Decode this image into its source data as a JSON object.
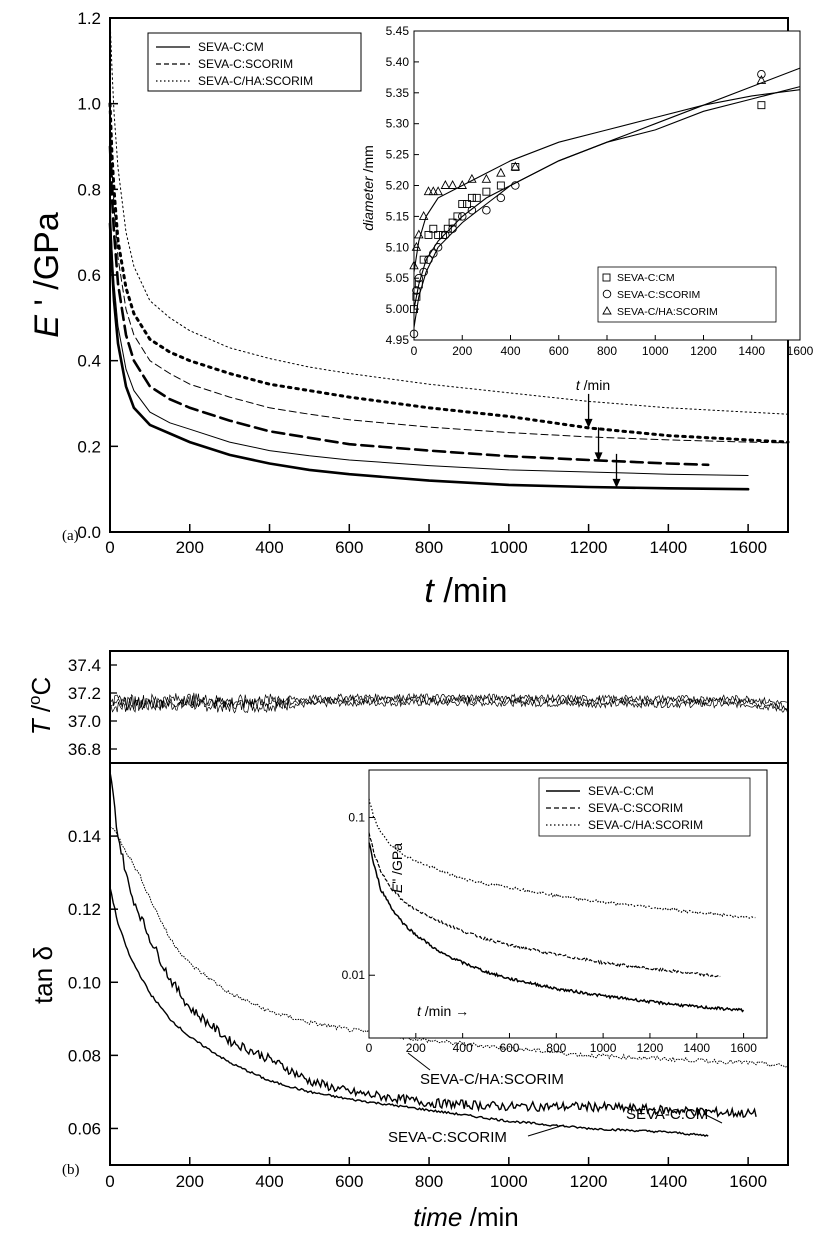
{
  "chart_data": [
    {
      "id": "panel_a",
      "type": "line",
      "panel_label": "(a)",
      "ylabel": "E ' /GPa",
      "xlabel": "t /min",
      "xlim": [
        0,
        1700
      ],
      "ylim": [
        0,
        1.2
      ],
      "xticks": [
        "0",
        "200",
        "400",
        "600",
        "800",
        "1000",
        "1200",
        "1400",
        "1600"
      ],
      "yticks": [
        "0.0",
        "0.2",
        "0.4",
        "0.6",
        "0.8",
        "1.0",
        "1.2"
      ],
      "legend": {
        "position": "top-left",
        "entries": [
          {
            "label": "SEVA-C:CM",
            "style": "solid"
          },
          {
            "label": "SEVA-C:SCORIM",
            "style": "dashed"
          },
          {
            "label": "SEVA-C/HA:SCORIM",
            "style": "dotted"
          }
        ]
      },
      "series": [
        {
          "name": "SEVA-C:CM",
          "style": "solid",
          "weight": "thick",
          "x": [
            0,
            5,
            10,
            20,
            40,
            60,
            100,
            150,
            200,
            300,
            400,
            500,
            600,
            800,
            1000,
            1200,
            1400,
            1600
          ],
          "y": [
            0.72,
            0.62,
            0.54,
            0.44,
            0.34,
            0.29,
            0.25,
            0.23,
            0.21,
            0.18,
            0.16,
            0.145,
            0.135,
            0.12,
            0.11,
            0.105,
            0.102,
            0.1
          ]
        },
        {
          "name": "SEVA-C:CM",
          "style": "solid",
          "weight": "thin",
          "x": [
            0,
            5,
            10,
            20,
            40,
            60,
            100,
            150,
            200,
            300,
            400,
            500,
            600,
            800,
            1000,
            1200,
            1400,
            1600
          ],
          "y": [
            0.78,
            0.66,
            0.58,
            0.48,
            0.38,
            0.33,
            0.28,
            0.255,
            0.24,
            0.21,
            0.19,
            0.178,
            0.168,
            0.155,
            0.145,
            0.14,
            0.135,
            0.132
          ]
        },
        {
          "name": "SEVA-C:SCORIM",
          "style": "dashed",
          "weight": "thick",
          "x": [
            0,
            5,
            10,
            20,
            40,
            60,
            100,
            150,
            200,
            300,
            400,
            500,
            600,
            800,
            1000,
            1200,
            1400,
            1500
          ],
          "y": [
            0.9,
            0.78,
            0.7,
            0.58,
            0.46,
            0.4,
            0.34,
            0.31,
            0.29,
            0.26,
            0.235,
            0.22,
            0.205,
            0.19,
            0.177,
            0.168,
            0.16,
            0.157
          ]
        },
        {
          "name": "SEVA-C:SCORIM",
          "style": "dashed",
          "weight": "thin",
          "x": [
            0,
            5,
            10,
            20,
            40,
            60,
            100,
            150,
            200,
            300,
            400,
            500,
            600,
            800,
            1000,
            1200,
            1400,
            1600,
            1700
          ],
          "y": [
            0.96,
            0.85,
            0.76,
            0.64,
            0.52,
            0.46,
            0.4,
            0.37,
            0.345,
            0.315,
            0.29,
            0.275,
            0.262,
            0.245,
            0.232,
            0.222,
            0.215,
            0.21,
            0.208
          ]
        },
        {
          "name": "SEVA-C/HA:SCORIM",
          "style": "dotted",
          "weight": "thick",
          "x": [
            0,
            5,
            10,
            20,
            40,
            60,
            100,
            150,
            200,
            300,
            400,
            500,
            600,
            800,
            1000,
            1200,
            1400,
            1600,
            1700
          ],
          "y": [
            1.0,
            0.88,
            0.8,
            0.68,
            0.57,
            0.51,
            0.45,
            0.42,
            0.4,
            0.37,
            0.345,
            0.33,
            0.315,
            0.29,
            0.27,
            0.243,
            0.225,
            0.215,
            0.21
          ]
        },
        {
          "name": "SEVA-C/HA:SCORIM",
          "style": "dotted",
          "weight": "thin",
          "x": [
            0,
            5,
            10,
            20,
            40,
            60,
            100,
            150,
            200,
            300,
            400,
            500,
            600,
            800,
            1000,
            1200,
            1400,
            1600,
            1700
          ],
          "y": [
            1.2,
            1.08,
            0.98,
            0.85,
            0.7,
            0.62,
            0.54,
            0.5,
            0.47,
            0.43,
            0.405,
            0.385,
            0.37,
            0.345,
            0.325,
            0.305,
            0.29,
            0.28,
            0.275
          ]
        }
      ],
      "annotations": [
        {
          "type": "arrow",
          "x": 1200,
          "y": 0.243
        },
        {
          "type": "arrow",
          "x": 1225,
          "y": 0.165
        },
        {
          "type": "arrow",
          "x": 1270,
          "y": 0.103
        }
      ]
    },
    {
      "id": "panel_a_inset",
      "type": "scatter",
      "ylabel": "diameter /mm",
      "xlabel": "t /min",
      "xlim": [
        0,
        1600
      ],
      "ylim": [
        4.95,
        5.45
      ],
      "xticks": [
        "0",
        "200",
        "400",
        "600",
        "800",
        "1000",
        "1200",
        "1400",
        "1600"
      ],
      "yticks": [
        "4.95",
        "5.00",
        "5.05",
        "5.10",
        "5.15",
        "5.20",
        "5.25",
        "5.30",
        "5.35",
        "5.40",
        "5.45"
      ],
      "legend": {
        "position": "bottom-right",
        "entries": [
          {
            "label": "SEVA-C:CM",
            "marker": "square"
          },
          {
            "label": "SEVA-C:SCORIM",
            "marker": "circle"
          },
          {
            "label": "SEVA-C/HA:SCORIM",
            "marker": "triangle"
          }
        ]
      },
      "series": [
        {
          "name": "SEVA-C:CM",
          "marker": "square",
          "x": [
            0,
            10,
            20,
            40,
            60,
            80,
            100,
            120,
            140,
            160,
            180,
            200,
            220,
            240,
            260,
            300,
            360,
            420,
            1440
          ],
          "y": [
            5.0,
            5.02,
            5.04,
            5.08,
            5.12,
            5.13,
            5.12,
            5.12,
            5.13,
            5.14,
            5.15,
            5.17,
            5.17,
            5.18,
            5.18,
            5.19,
            5.2,
            5.23,
            5.33
          ]
        },
        {
          "name": "SEVA-C:SCORIM",
          "marker": "circle",
          "x": [
            0,
            10,
            20,
            40,
            60,
            80,
            100,
            130,
            160,
            200,
            240,
            300,
            360,
            420,
            1440
          ],
          "y": [
            4.96,
            5.03,
            5.05,
            5.06,
            5.08,
            5.09,
            5.1,
            5.12,
            5.13,
            5.15,
            5.16,
            5.16,
            5.18,
            5.2,
            5.38
          ]
        },
        {
          "name": "SEVA-C/HA:SCORIM",
          "marker": "triangle",
          "x": [
            0,
            10,
            20,
            40,
            60,
            80,
            100,
            130,
            160,
            200,
            240,
            300,
            360,
            420,
            1440
          ],
          "y": [
            5.07,
            5.1,
            5.12,
            5.15,
            5.19,
            5.19,
            5.19,
            5.2,
            5.2,
            5.2,
            5.21,
            5.21,
            5.22,
            5.23,
            5.37
          ]
        }
      ],
      "fit_lines": [
        {
          "x": [
            0,
            20,
            50,
            100,
            200,
            300,
            400,
            600,
            800,
            1000,
            1200,
            1400,
            1600
          ],
          "y": [
            5.0,
            5.04,
            5.08,
            5.11,
            5.15,
            5.18,
            5.2,
            5.24,
            5.27,
            5.29,
            5.32,
            5.34,
            5.36
          ]
        },
        {
          "x": [
            0,
            20,
            50,
            100,
            200,
            300,
            400,
            600,
            800,
            1000,
            1200,
            1400,
            1600
          ],
          "y": [
            4.97,
            5.02,
            5.06,
            5.1,
            5.14,
            5.17,
            5.2,
            5.24,
            5.27,
            5.3,
            5.33,
            5.36,
            5.39
          ]
        },
        {
          "x": [
            0,
            20,
            50,
            100,
            200,
            300,
            400,
            600,
            800,
            1000,
            1200,
            1400,
            1600
          ],
          "y": [
            5.06,
            5.11,
            5.15,
            5.18,
            5.2,
            5.22,
            5.24,
            5.27,
            5.29,
            5.31,
            5.33,
            5.345,
            5.355
          ]
        }
      ]
    },
    {
      "id": "panel_b_temp",
      "type": "line",
      "ylabel": "T /oC",
      "xlim": [
        0,
        1700
      ],
      "ylim": [
        36.7,
        37.5
      ],
      "yticks": [
        "36.8",
        "37.0",
        "37.2",
        "37.4"
      ],
      "series": [
        {
          "name": "T",
          "noisy": true,
          "x": [
            0,
            100,
            200,
            300,
            400,
            500,
            600,
            800,
            1000,
            1200,
            1400,
            1600,
            1700
          ],
          "y": [
            37.12,
            37.13,
            37.14,
            37.12,
            37.13,
            37.14,
            37.15,
            37.15,
            37.15,
            37.14,
            37.14,
            37.14,
            37.1
          ]
        }
      ]
    },
    {
      "id": "panel_b",
      "type": "line",
      "panel_label": "(b)",
      "ylabel": "tan δ",
      "xlabel": "time /min",
      "xlim": [
        0,
        1700
      ],
      "ylim": [
        0.05,
        0.16
      ],
      "xticks": [
        "0",
        "200",
        "400",
        "600",
        "800",
        "1000",
        "1200",
        "1400",
        "1600"
      ],
      "yticks": [
        "0.06",
        "0.08",
        "0.10",
        "0.12",
        "0.14"
      ],
      "series": [
        {
          "name": "SEVA-C:CM",
          "x": [
            0,
            20,
            50,
            100,
            150,
            200,
            300,
            400,
            500,
            600,
            800,
            1000,
            1200,
            1400,
            1620
          ],
          "y": [
            0.158,
            0.14,
            0.125,
            0.112,
            0.101,
            0.093,
            0.084,
            0.079,
            0.073,
            0.07,
            0.067,
            0.066,
            0.066,
            0.065,
            0.064
          ]
        },
        {
          "name": "SEVA-C:SCORIM",
          "x": [
            0,
            20,
            50,
            100,
            150,
            200,
            300,
            400,
            500,
            600,
            800,
            1000,
            1200,
            1400,
            1500
          ],
          "y": [
            0.126,
            0.116,
            0.107,
            0.097,
            0.09,
            0.085,
            0.078,
            0.073,
            0.07,
            0.068,
            0.065,
            0.062,
            0.06,
            0.059,
            0.058
          ]
        },
        {
          "name": "SEVA-C/HA:SCORIM",
          "x": [
            0,
            20,
            50,
            80,
            100,
            150,
            200,
            300,
            400,
            500,
            600,
            800,
            1000,
            1200,
            1400,
            1600,
            1700
          ],
          "y": [
            0.143,
            0.14,
            0.134,
            0.128,
            0.123,
            0.112,
            0.105,
            0.097,
            0.092,
            0.089,
            0.087,
            0.084,
            0.082,
            0.08,
            0.079,
            0.078,
            0.077
          ]
        }
      ],
      "annotations": [
        {
          "label": "SEVA-C/HA:SCORIM",
          "x": 760,
          "y": 0.0815
        },
        {
          "label": "SEVA-C:CM",
          "x": 1325,
          "y": 0.0675
        },
        {
          "label": "SEVA-C:SCORIM",
          "x": 830,
          "y": 0.0565
        }
      ]
    },
    {
      "id": "panel_b_inset",
      "type": "line",
      "ylabel": "E\" /GPa",
      "xlabel": "t /min",
      "xlim": [
        0,
        1700
      ],
      "ylim": [
        0.004,
        0.2
      ],
      "yscale": "log",
      "xticks": [
        "0",
        "200",
        "400",
        "600",
        "800",
        "1000",
        "1200",
        "1400",
        "1600"
      ],
      "yticks": [
        "0.01",
        "0.1"
      ],
      "legend": {
        "position": "top-right",
        "entries": [
          {
            "label": "SEVA-C:CM",
            "style": "solid"
          },
          {
            "label": "SEVA-C:SCORIM",
            "style": "dashed"
          },
          {
            "label": "SEVA-C/HA:SCORIM",
            "style": "dotted"
          }
        ]
      },
      "series": [
        {
          "name": "SEVA-C:CM",
          "style": "solid",
          "x": [
            0,
            20,
            50,
            100,
            150,
            200,
            300,
            400,
            500,
            600,
            800,
            1000,
            1200,
            1400,
            1600
          ],
          "y": [
            0.07,
            0.05,
            0.035,
            0.026,
            0.021,
            0.018,
            0.014,
            0.012,
            0.0105,
            0.0095,
            0.0082,
            0.0074,
            0.0068,
            0.0063,
            0.006
          ]
        },
        {
          "name": "SEVA-C:SCORIM",
          "style": "dashed",
          "x": [
            0,
            20,
            50,
            100,
            150,
            200,
            300,
            400,
            500,
            600,
            800,
            1000,
            1200,
            1400,
            1500
          ],
          "y": [
            0.08,
            0.06,
            0.045,
            0.035,
            0.029,
            0.026,
            0.022,
            0.019,
            0.017,
            0.0155,
            0.0135,
            0.012,
            0.011,
            0.0102,
            0.0098
          ]
        },
        {
          "name": "SEVA-C/HA:SCORIM",
          "style": "dotted",
          "x": [
            0,
            20,
            50,
            100,
            150,
            200,
            300,
            400,
            500,
            600,
            800,
            1000,
            1200,
            1400,
            1650
          ],
          "y": [
            0.13,
            0.1,
            0.08,
            0.065,
            0.058,
            0.053,
            0.046,
            0.041,
            0.038,
            0.036,
            0.032,
            0.029,
            0.027,
            0.025,
            0.023
          ]
        }
      ]
    }
  ]
}
